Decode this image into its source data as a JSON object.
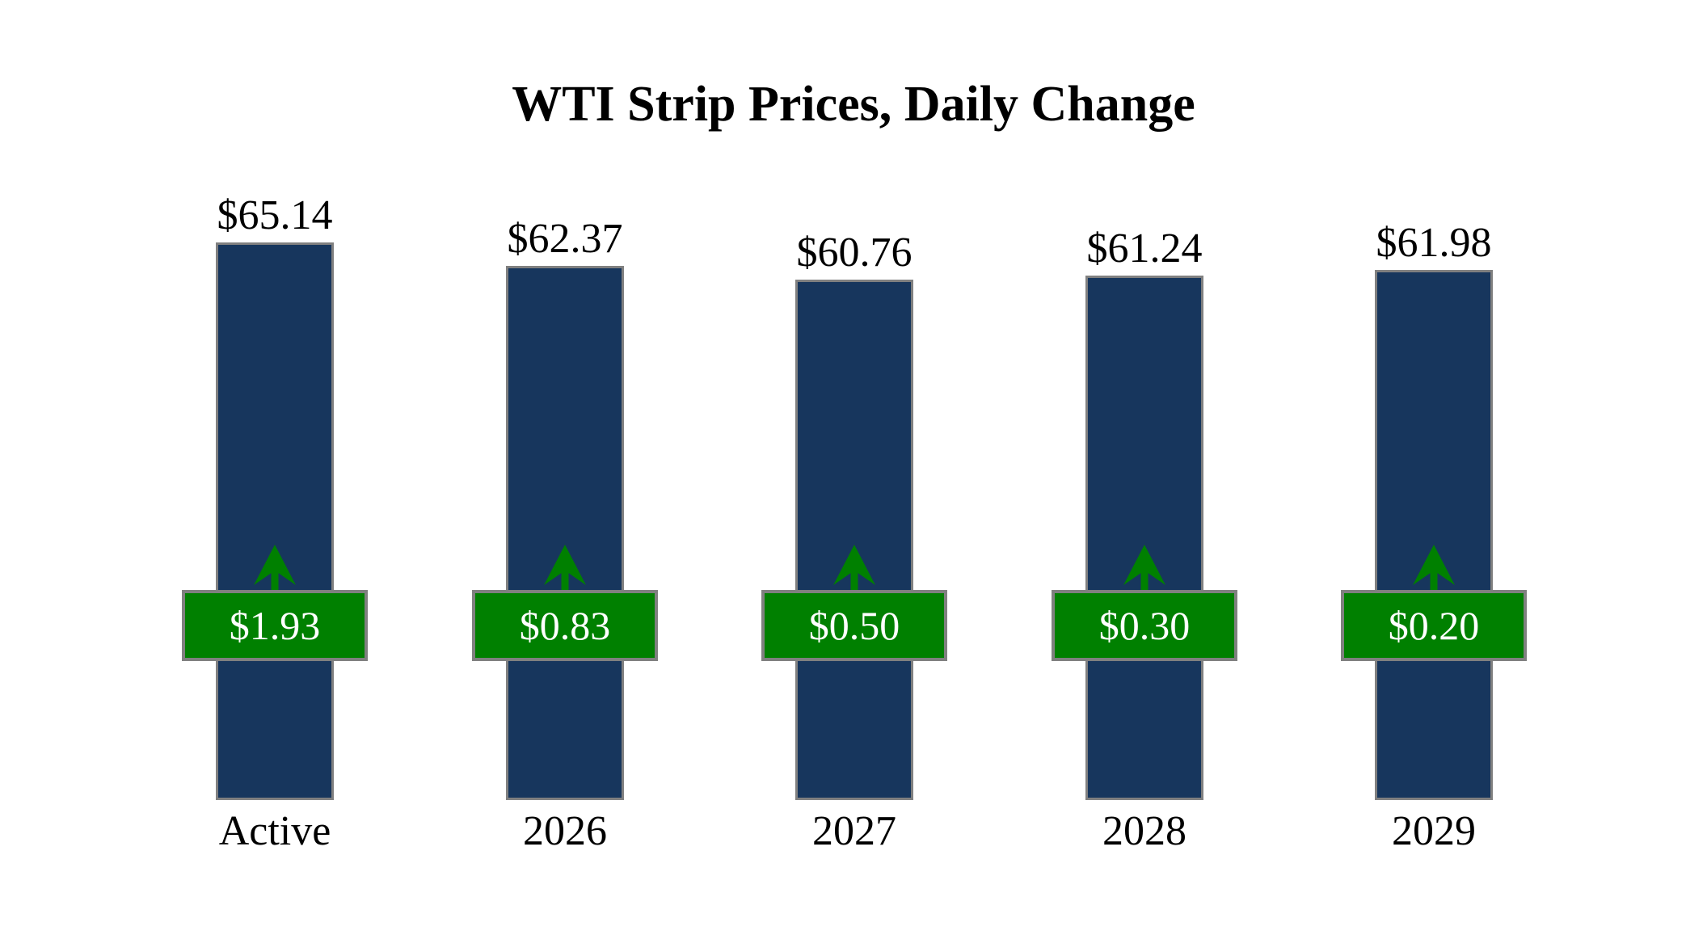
{
  "title": "WTI Strip Prices, Daily Change",
  "colors": {
    "bar_fill": "#17365D",
    "bar_border": "#808080",
    "badge_fill": "#008000",
    "badge_border": "#808080",
    "badge_text": "#FFFFFF",
    "arrow": "#008000",
    "label_text": "#000000",
    "background": "#FFFFFF"
  },
  "chart_data": {
    "type": "bar",
    "title": "WTI Strip Prices, Daily Change",
    "categories": [
      "Active",
      "2026",
      "2027",
      "2028",
      "2029"
    ],
    "series": [
      {
        "name": "WTI Strip Price",
        "values": [
          65.14,
          62.37,
          60.76,
          61.24,
          61.98
        ],
        "labels": [
          "$65.14",
          "$62.37",
          "$60.76",
          "$61.24",
          "$61.98"
        ]
      },
      {
        "name": "Daily Change",
        "values": [
          1.93,
          0.83,
          0.5,
          0.3,
          0.2
        ],
        "labels": [
          "$1.93",
          "$0.83",
          "$0.50",
          "$0.30",
          "$0.20"
        ],
        "direction": "up"
      }
    ],
    "xlabel": "",
    "ylabel": "",
    "ylim": [
      0,
      66
    ],
    "grid": false,
    "legend": false
  }
}
